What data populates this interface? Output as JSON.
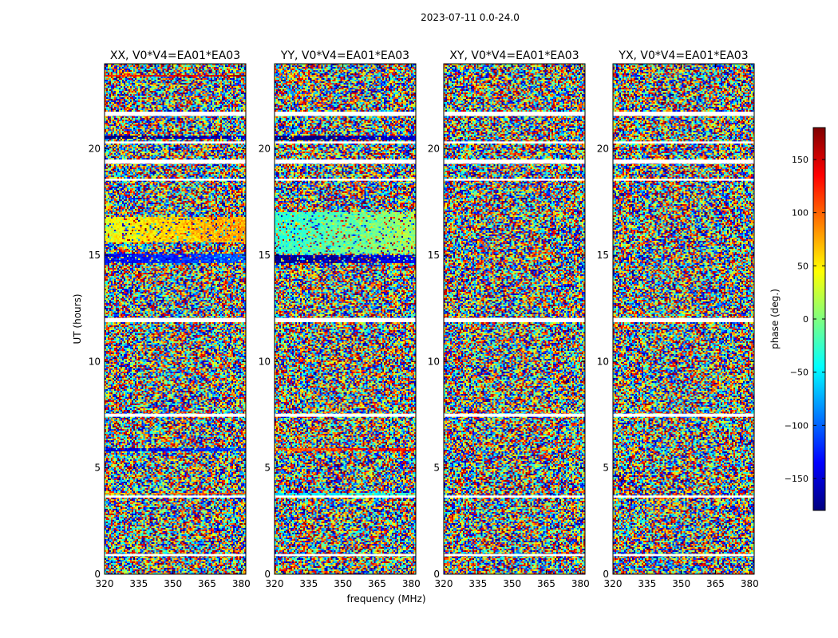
{
  "figure": {
    "suptitle": "2023-07-11 0.0-24.0",
    "xlabel": "frequency (MHz)",
    "ylabel": "UT (hours)"
  },
  "colorbar": {
    "label": "phase (deg.)",
    "range": [
      -180,
      180
    ],
    "ticks": [
      150,
      100,
      50,
      0,
      -50,
      -100,
      -150
    ],
    "tick_labels": [
      "150",
      "100",
      "50",
      "0",
      "−50",
      "−100",
      "−150"
    ],
    "colormap": "jet",
    "colors": [
      "#00007f",
      "#0000ff",
      "#007fff",
      "#00ffff",
      "#7fff7f",
      "#ffff00",
      "#ff7f00",
      "#ff0000",
      "#7f0000"
    ]
  },
  "chart_data": {
    "type": "heatmap",
    "xlim": [
      320,
      382
    ],
    "ylim": [
      0,
      24
    ],
    "x_ticks": [
      320,
      335,
      350,
      365,
      380
    ],
    "x_tick_labels": [
      "320",
      "335",
      "350",
      "365",
      "380"
    ],
    "y_ticks": [
      0,
      5,
      10,
      15,
      20
    ],
    "y_tick_labels": [
      "0",
      "5",
      "10",
      "15",
      "20"
    ],
    "flagged_bands_ut": [
      [
        0.85,
        0.95
      ],
      [
        3.6,
        3.7
      ],
      [
        7.4,
        7.55
      ],
      [
        11.85,
        12.05
      ],
      [
        18.5,
        18.6
      ],
      [
        19.3,
        19.5
      ],
      [
        20.25,
        20.35
      ],
      [
        21.55,
        21.75
      ]
    ],
    "panels": [
      {
        "title": "XX, V0*V4=EA01*EA03",
        "coherent_bands": [
          {
            "ut": [
              14.6,
              15.1
            ],
            "phase": -120
          },
          {
            "ut": [
              15.6,
              16.8
            ],
            "phase": 60
          },
          {
            "ut": [
              20.45,
              20.6
            ],
            "phase": -170
          },
          {
            "ut": [
              5.75,
              5.9
            ],
            "phase": -130
          },
          {
            "ut": [
              3.75,
              3.85
            ],
            "phase": 90
          },
          {
            "ut": [
              23.4,
              23.5
            ],
            "phase": 140
          }
        ]
      },
      {
        "title": "YY, V0*V4=EA01*EA03",
        "coherent_bands": [
          {
            "ut": [
              14.6,
              15.0
            ],
            "phase": -160
          },
          {
            "ut": [
              15.1,
              17.0
            ],
            "phase": -10
          },
          {
            "ut": [
              20.4,
              20.6
            ],
            "phase": -170
          },
          {
            "ut": [
              5.75,
              5.9
            ],
            "phase": 120
          },
          {
            "ut": [
              3.7,
              3.85
            ],
            "phase": -40
          }
        ]
      },
      {
        "title": "XY, V0*V4=EA01*EA03",
        "coherent_bands": []
      },
      {
        "title": "YX, V0*V4=EA01*EA03",
        "coherent_bands": []
      }
    ]
  }
}
